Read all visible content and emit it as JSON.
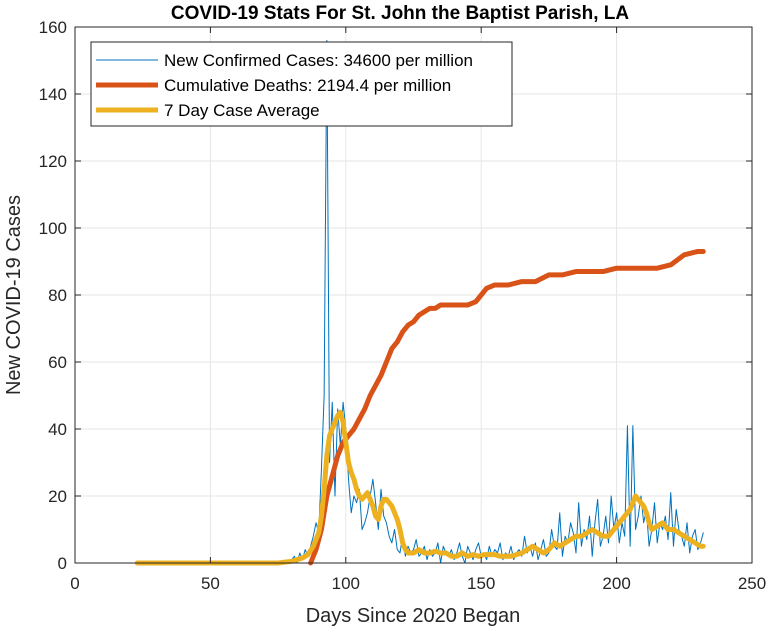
{
  "chart_data": {
    "type": "line",
    "title": "COVID-19 Stats For St. John the Baptist Parish, LA",
    "xlabel": "Days Since 2020 Began",
    "ylabel": "New COVID-19 Cases",
    "xlim": [
      0,
      250
    ],
    "ylim": [
      0,
      160
    ],
    "xticks": [
      0,
      50,
      100,
      150,
      200,
      250
    ],
    "yticks": [
      0,
      20,
      40,
      60,
      80,
      100,
      120,
      140,
      160
    ],
    "xtick_labels": [
      "0",
      "50",
      "100",
      "150",
      "200",
      "250"
    ],
    "ytick_labels": [
      "0",
      "20",
      "40",
      "60",
      "80",
      "100",
      "120",
      "140",
      "160"
    ],
    "grid": true,
    "legend_position": "top-left",
    "series": [
      {
        "name": "New Confirmed Cases: 34600 per million",
        "color": "#0072BD",
        "line_width": "thin",
        "x": [
          23,
          30,
          40,
          50,
          60,
          70,
          75,
          80,
          81,
          82,
          83,
          84,
          85,
          86,
          87,
          88,
          89,
          90,
          91,
          92,
          93,
          94,
          95,
          96,
          97,
          98,
          99,
          100,
          101,
          102,
          103,
          104,
          105,
          106,
          107,
          108,
          109,
          110,
          111,
          112,
          113,
          114,
          115,
          116,
          117,
          118,
          119,
          120,
          121,
          122,
          123,
          124,
          125,
          126,
          127,
          128,
          129,
          130,
          131,
          132,
          133,
          134,
          135,
          136,
          137,
          138,
          139,
          140,
          141,
          142,
          143,
          144,
          145,
          146,
          147,
          148,
          149,
          150,
          151,
          152,
          153,
          154,
          155,
          156,
          157,
          158,
          159,
          160,
          161,
          162,
          163,
          164,
          165,
          166,
          167,
          168,
          169,
          170,
          171,
          172,
          173,
          174,
          175,
          176,
          177,
          178,
          179,
          180,
          181,
          182,
          183,
          184,
          185,
          186,
          187,
          188,
          189,
          190,
          191,
          192,
          193,
          194,
          195,
          196,
          197,
          198,
          199,
          200,
          201,
          202,
          203,
          204,
          205,
          206,
          207,
          208,
          209,
          210,
          211,
          212,
          213,
          214,
          215,
          216,
          217,
          218,
          219,
          220,
          221,
          222,
          223,
          224,
          225,
          226,
          227,
          228,
          229,
          230,
          231,
          232
        ],
        "values": [
          0,
          0,
          0,
          0,
          0,
          0,
          0,
          1,
          2,
          0,
          3,
          1,
          4,
          2,
          5,
          8,
          12,
          9,
          28,
          50,
          156,
          30,
          48,
          20,
          46,
          35,
          48,
          40,
          25,
          15,
          20,
          18,
          22,
          10,
          12,
          15,
          20,
          25,
          18,
          10,
          22,
          14,
          12,
          8,
          6,
          10,
          4,
          3,
          8,
          2,
          5,
          3,
          4,
          7,
          2,
          3,
          5,
          1,
          4,
          2,
          3,
          6,
          0,
          5,
          3,
          2,
          4,
          1,
          3,
          6,
          2,
          0,
          5,
          3,
          1,
          4,
          6,
          2,
          3,
          1,
          5,
          2,
          4,
          3,
          6,
          1,
          3,
          2,
          5,
          1,
          3,
          4,
          2,
          8,
          3,
          5,
          2,
          6,
          1,
          4,
          7,
          2,
          3,
          10,
          5,
          4,
          15,
          2,
          8,
          6,
          12,
          9,
          3,
          18,
          5,
          10,
          7,
          14,
          2,
          12,
          19,
          5,
          8,
          14,
          6,
          20,
          10,
          15,
          6,
          12,
          8,
          41,
          5,
          41,
          10,
          14,
          20,
          12,
          16,
          5,
          10,
          18,
          6,
          12,
          10,
          14,
          7,
          21,
          5,
          16,
          10,
          8,
          5,
          12,
          3,
          8,
          10,
          4,
          6,
          9
        ]
      },
      {
        "name": "Cumulative Deaths: 2194.4 per million",
        "color": "#D95319",
        "line_width": "thick",
        "x": [
          87,
          89,
          91,
          93,
          95,
          97,
          99,
          101,
          103,
          105,
          107,
          109,
          111,
          113,
          115,
          117,
          119,
          121,
          123,
          125,
          127,
          129,
          131,
          133,
          135,
          140,
          145,
          148,
          150,
          152,
          155,
          160,
          165,
          170,
          175,
          180,
          185,
          190,
          195,
          200,
          205,
          210,
          213,
          215,
          220,
          225,
          230,
          232
        ],
        "values": [
          0,
          4,
          10,
          20,
          26,
          32,
          36,
          38,
          40,
          43,
          46,
          50,
          53,
          56,
          60,
          64,
          66,
          69,
          71,
          72,
          74,
          75,
          76,
          76,
          77,
          77,
          77,
          78,
          80,
          82,
          83,
          83,
          84,
          84,
          86,
          86,
          87,
          87,
          87,
          88,
          88,
          88,
          88,
          88,
          89,
          92,
          93,
          93
        ]
      },
      {
        "name": "7 Day Case Average",
        "color": "#EDB120",
        "line_width": "thick",
        "x": [
          23,
          30,
          40,
          50,
          60,
          70,
          75,
          80,
          82,
          84,
          86,
          88,
          90,
          91,
          92,
          93,
          94,
          95,
          96,
          97,
          98,
          99,
          100,
          101,
          102,
          103,
          104,
          105,
          106,
          107,
          108,
          109,
          110,
          111,
          112,
          113,
          114,
          115,
          116,
          117,
          118,
          119,
          120,
          121,
          122,
          123,
          125,
          127,
          129,
          131,
          133,
          135,
          137,
          139,
          141,
          143,
          145,
          147,
          149,
          151,
          153,
          155,
          157,
          159,
          161,
          163,
          165,
          167,
          169,
          171,
          173,
          175,
          177,
          179,
          181,
          183,
          185,
          187,
          189,
          191,
          193,
          195,
          197,
          199,
          201,
          203,
          205,
          206,
          207,
          208,
          209,
          210,
          211,
          212,
          213,
          215,
          217,
          219,
          221,
          223,
          225,
          227,
          229,
          231,
          232
        ],
        "values": [
          0,
          0,
          0,
          0,
          0,
          0,
          0,
          0.5,
          1,
          1.5,
          2.5,
          5,
          9,
          14,
          22,
          32,
          38,
          40,
          42,
          44,
          45,
          42,
          36,
          30,
          27,
          25,
          22,
          20,
          19,
          20,
          21,
          19,
          17,
          14,
          13,
          17,
          19,
          19,
          18,
          17,
          15,
          13,
          10,
          6,
          4,
          3,
          3,
          4,
          3,
          3,
          3.5,
          3,
          3,
          2,
          2,
          3,
          2,
          2.5,
          2,
          2.5,
          2.5,
          2.5,
          2,
          2,
          2,
          2.5,
          3,
          4,
          5,
          4,
          3,
          4,
          6,
          5,
          6,
          7,
          8,
          8,
          9,
          10,
          9,
          8,
          8,
          10,
          12,
          14,
          16,
          18,
          20,
          19,
          18,
          17,
          15,
          12,
          10,
          11,
          12,
          10,
          10,
          9,
          8,
          7,
          6,
          5,
          5
        ]
      }
    ]
  }
}
